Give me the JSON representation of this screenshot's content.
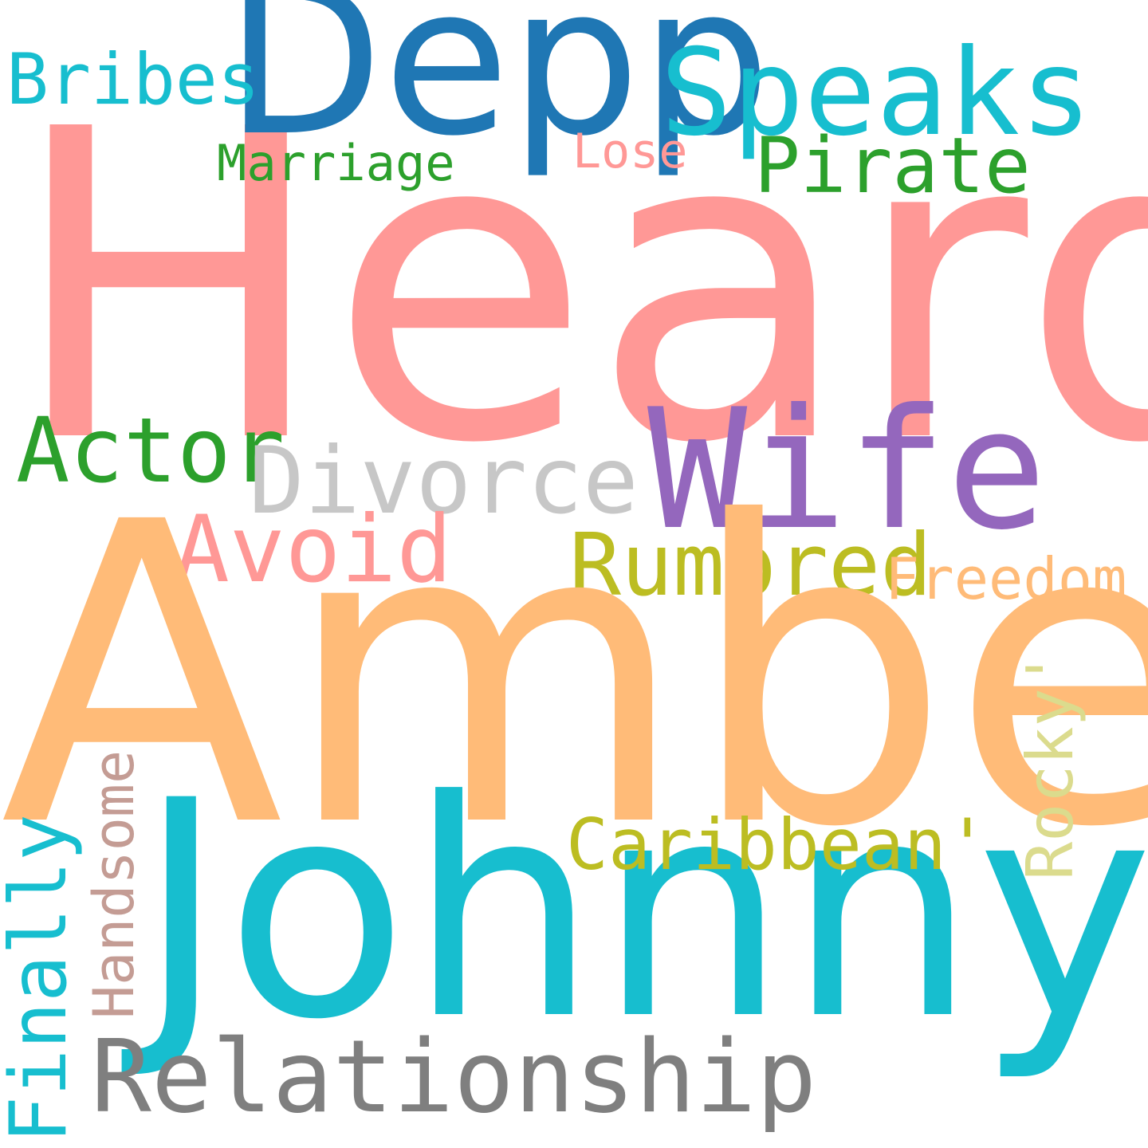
{
  "words": {
    "heard": {
      "text": "Heard",
      "color": "#ff9896"
    },
    "depp": {
      "text": "Depp",
      "color": "#1f77b4"
    },
    "speaks": {
      "text": "Speaks",
      "color": "#17becf"
    },
    "bribes": {
      "text": "Bribes",
      "color": "#17becf"
    },
    "marriage": {
      "text": "Marriage",
      "color": "#2ca02c"
    },
    "lose": {
      "text": "Lose",
      "color": "#ff9896"
    },
    "pirate": {
      "text": "Pirate",
      "color": "#2ca02c"
    },
    "actor": {
      "text": "Actor",
      "color": "#2ca02c"
    },
    "divorce": {
      "text": "Divorce",
      "color": "#c7c7c7"
    },
    "wife": {
      "text": "Wife",
      "color": "#9467bd"
    },
    "avoid": {
      "text": "Avoid",
      "color": "#ff9896"
    },
    "rumored": {
      "text": "Rumored",
      "color": "#bcbd22"
    },
    "freedom": {
      "text": "Freedom",
      "color": "#ffbb78"
    },
    "amber": {
      "text": "Amber",
      "color": "#ffbb78"
    },
    "johnny": {
      "text": "Johnny",
      "color": "#17becf"
    },
    "caribbean": {
      "text": "Caribbean'",
      "color": "#bcbd22"
    },
    "rocky": {
      "text": "Rocky'",
      "color": "#dbdb8d"
    },
    "handsome": {
      "text": "Handsome",
      "color": "#c49c94"
    },
    "finally": {
      "text": "Finally",
      "color": "#17becf"
    },
    "relationship": {
      "text": "Relationship",
      "color": "#7f7f7f"
    }
  }
}
